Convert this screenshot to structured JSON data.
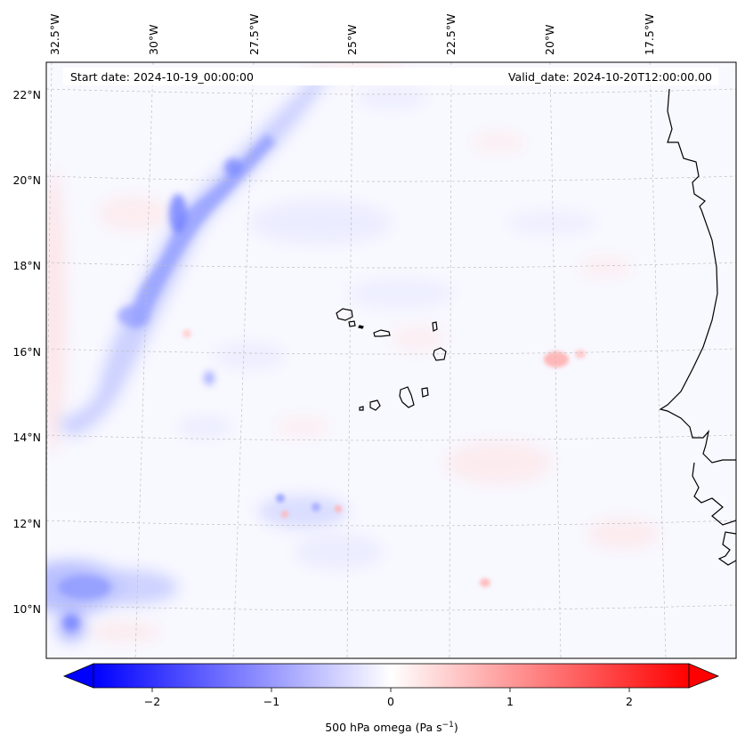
{
  "map": {
    "header": {
      "start_date": "Start date: 2024-10-19_00:00:00",
      "valid_date": "Valid_date: 2024-10-20T12:00:00.00"
    },
    "lon_labels": [
      "32.5°W",
      "30°W",
      "27.5°W",
      "25°W",
      "22.5°W",
      "20°W",
      "17.5°W"
    ],
    "lat_labels": [
      "22°N",
      "20°N",
      "18°N",
      "16°N",
      "14°N",
      "12°N",
      "10°N"
    ],
    "colorbar": {
      "label_prefix": "500 hPa omega (Pa s",
      "label_exp": "−1",
      "label_suffix": ")",
      "ticks": [
        "−2",
        "−1",
        "0",
        "1",
        "2"
      ],
      "range": [
        -2.5,
        2.5
      ],
      "low_color": "#0000ff",
      "mid_color": "#ffffff",
      "high_color": "#ff0000"
    },
    "colors": {
      "coastline": "#000000",
      "gridline": "#bfbfbf"
    }
  }
}
